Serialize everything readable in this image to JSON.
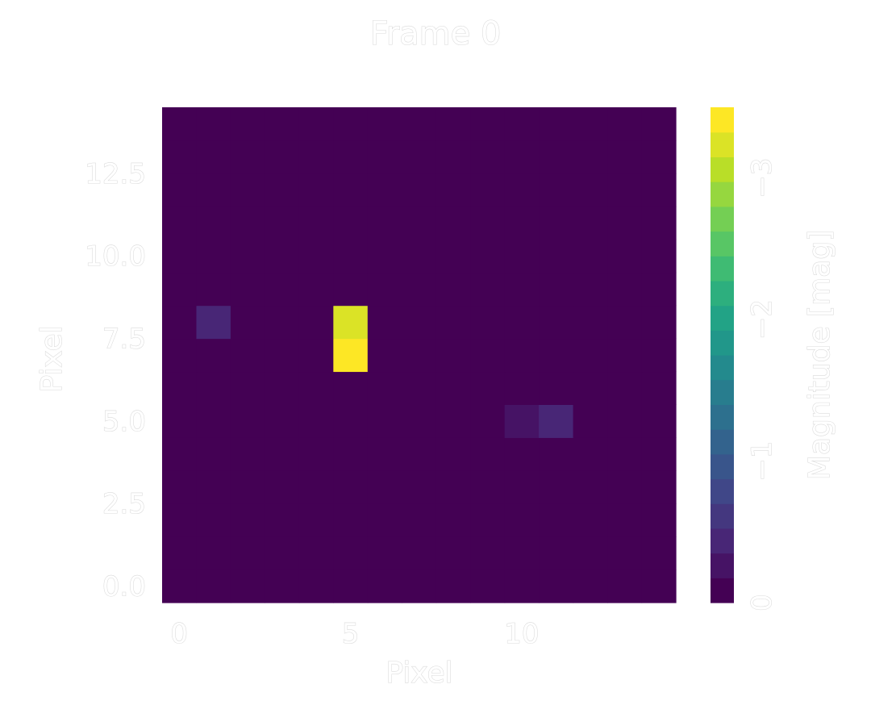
{
  "chart_data": {
    "type": "heatmap",
    "title": "Frame 0",
    "xlabel": "Pixel",
    "ylabel": "Pixel",
    "colorbar_label": "Magnitude [mag]",
    "colormap": "viridis",
    "colorbar_range": [
      0,
      -3.5
    ],
    "colorbar_levels": 20,
    "xlim": [
      -0.5,
      14.5
    ],
    "ylim": [
      -0.5,
      14.5
    ],
    "xticks": [
      0,
      5,
      10
    ],
    "xtick_labels": [
      "0",
      "5",
      "10"
    ],
    "yticks": [
      0.0,
      2.5,
      5.0,
      7.5,
      10.0,
      12.5
    ],
    "ytick_labels": [
      "0.0",
      "2.5",
      "5.0",
      "7.5",
      "10.0",
      "12.5"
    ],
    "cbar_ticks": [
      0,
      -1,
      -2,
      -3
    ],
    "cbar_tick_labels": [
      "0",
      "−1",
      "−2",
      "−3"
    ],
    "grid_size": [
      15,
      15
    ],
    "background_value": 0,
    "cells": [
      {
        "x": 1,
        "y": 8,
        "value": -0.5
      },
      {
        "x": 1,
        "y": 7,
        "value": -0.15
      },
      {
        "x": 5,
        "y": 8,
        "value": -3.25
      },
      {
        "x": 5,
        "y": 7,
        "value": -3.5
      },
      {
        "x": 10,
        "y": 5,
        "value": -0.2
      },
      {
        "x": 11,
        "y": 5,
        "value": -0.45
      }
    ]
  }
}
